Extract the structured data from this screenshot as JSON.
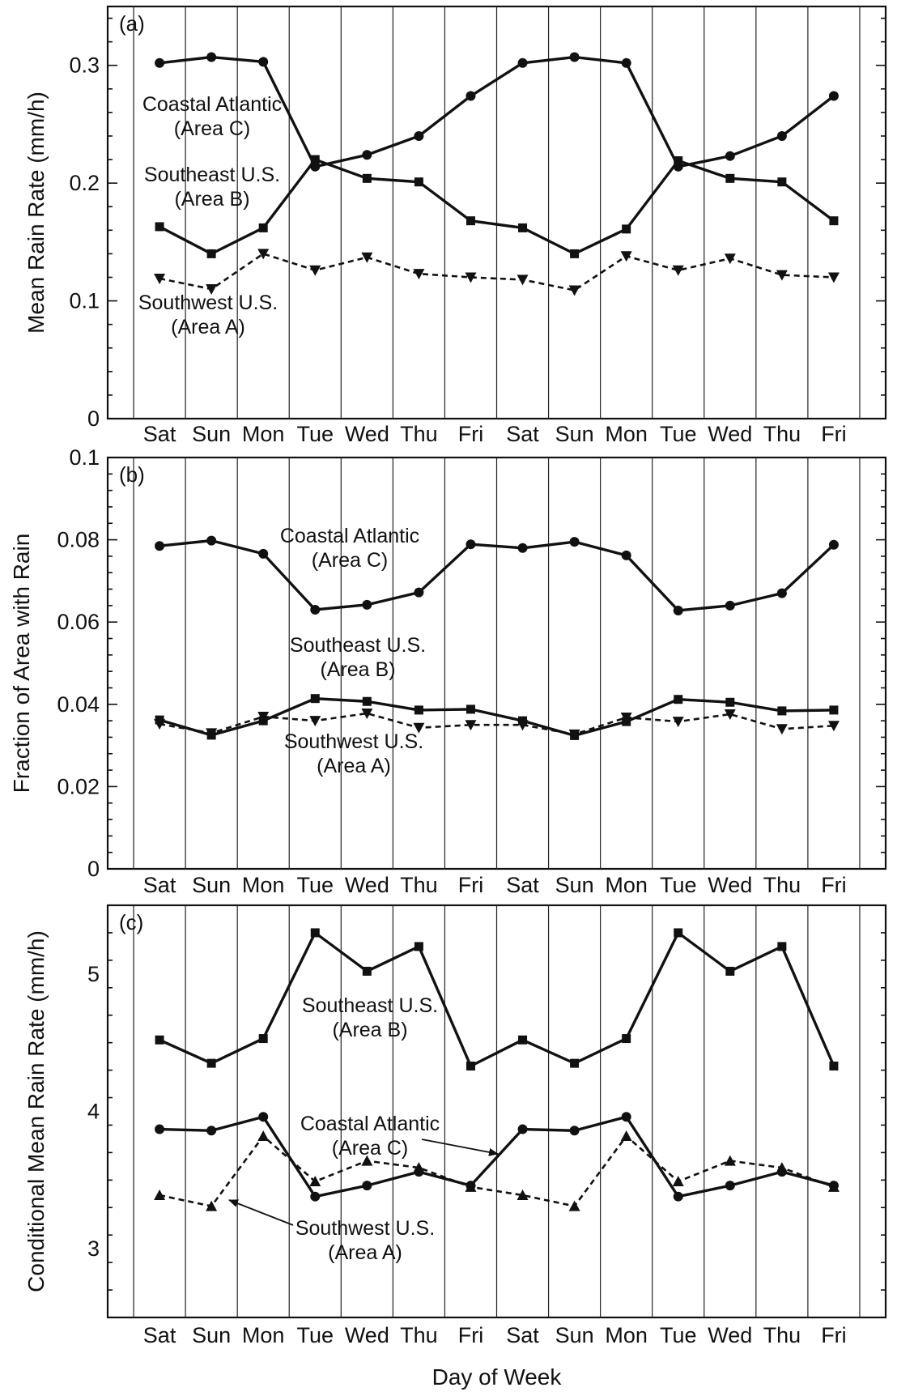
{
  "chart_data": [
    {
      "type": "line",
      "panel_label": "(a)",
      "ylabel": "Mean Rain Rate  (mm/h)",
      "xlabel": "",
      "ylim": [
        0,
        0.35
      ],
      "yticks": [
        0,
        0.1,
        0.2,
        0.3
      ],
      "ytick_labels": [
        "0",
        "0.1",
        "0.2",
        "0.3"
      ],
      "grid": "vertical",
      "categories": [
        "Sat",
        "Sun",
        "Mon",
        "Tue",
        "Wed",
        "Thu",
        "Fri",
        "Sat",
        "Sun",
        "Mon",
        "Tue",
        "Wed",
        "Thu",
        "Fri"
      ],
      "series": [
        {
          "name": "Coastal Atlantic",
          "name2": "(Area C)",
          "marker": "circle",
          "dash": "solid",
          "values": [
            0.302,
            0.307,
            0.303,
            0.214,
            0.224,
            0.24,
            0.274,
            0.302,
            0.307,
            0.302,
            0.214,
            0.223,
            0.24,
            0.274
          ]
        },
        {
          "name": "Southeast U.S.",
          "name2": "(Area B)",
          "marker": "square",
          "dash": "solid",
          "values": [
            0.163,
            0.14,
            0.162,
            0.22,
            0.204,
            0.201,
            0.168,
            0.162,
            0.14,
            0.161,
            0.219,
            0.204,
            0.201,
            0.168
          ]
        },
        {
          "name": "Southwest U.S.",
          "name2": "(Area A)",
          "marker": "triangle-down",
          "dash": "dashed",
          "values": [
            0.119,
            0.11,
            0.14,
            0.126,
            0.137,
            0.123,
            0.12,
            0.118,
            0.109,
            0.138,
            0.126,
            0.136,
            0.122,
            0.12
          ]
        }
      ]
    },
    {
      "type": "line",
      "panel_label": "(b)",
      "ylabel": "Fraction of Area with Rain",
      "xlabel": "",
      "ylim": [
        0,
        0.1
      ],
      "yticks": [
        0,
        0.02,
        0.04,
        0.06,
        0.08,
        0.1
      ],
      "ytick_labels": [
        "0",
        "0.02",
        "0.04",
        "0.06",
        "0.08",
        "0.1"
      ],
      "grid": "vertical",
      "categories": [
        "Sat",
        "Sun",
        "Mon",
        "Tue",
        "Wed",
        "Thu",
        "Fri",
        "Sat",
        "Sun",
        "Mon",
        "Tue",
        "Wed",
        "Thu",
        "Fri"
      ],
      "series": [
        {
          "name": "Coastal Atlantic",
          "name2": "(Area C)",
          "marker": "circle",
          "dash": "solid",
          "values": [
            0.0785,
            0.0798,
            0.0766,
            0.063,
            0.0642,
            0.0672,
            0.0789,
            0.078,
            0.0795,
            0.0762,
            0.0628,
            0.064,
            0.067,
            0.0788
          ]
        },
        {
          "name": "Southeast U.S.",
          "name2": "(Area B)",
          "marker": "square",
          "dash": "solid",
          "values": [
            0.0362,
            0.0325,
            0.036,
            0.0414,
            0.0407,
            0.0386,
            0.0388,
            0.036,
            0.0324,
            0.0358,
            0.0412,
            0.0405,
            0.0384,
            0.0386
          ]
        },
        {
          "name": "Southwest U.S.",
          "name2": "(Area A)",
          "marker": "triangle-down",
          "dash": "dashed",
          "values": [
            0.0352,
            0.033,
            0.037,
            0.036,
            0.0378,
            0.0343,
            0.035,
            0.035,
            0.0327,
            0.0368,
            0.0358,
            0.0376,
            0.034,
            0.0348
          ]
        }
      ]
    },
    {
      "type": "line",
      "panel_label": "(c)",
      "ylabel": "Conditional Mean Rain Rate  (mm/h)",
      "xlabel": "Day of Week",
      "ylim": [
        2.5,
        5.5
      ],
      "yticks": [
        3,
        4,
        5
      ],
      "ytick_labels": [
        "3",
        "4",
        "5"
      ],
      "grid": "vertical",
      "categories": [
        "Sat",
        "Sun",
        "Mon",
        "Tue",
        "Wed",
        "Thu",
        "Fri",
        "Sat",
        "Sun",
        "Mon",
        "Tue",
        "Wed",
        "Thu",
        "Fri"
      ],
      "series": [
        {
          "name": "Southeast U.S.",
          "name2": "(Area B)",
          "marker": "square",
          "dash": "solid",
          "values": [
            4.52,
            4.35,
            4.53,
            5.3,
            5.02,
            5.2,
            4.33,
            4.52,
            4.35,
            4.53,
            5.3,
            5.02,
            5.2,
            4.33
          ]
        },
        {
          "name": "Coastal Atlantic",
          "name2": "(Area C)",
          "marker": "circle",
          "dash": "solid",
          "values": [
            3.87,
            3.86,
            3.96,
            3.38,
            3.46,
            3.56,
            3.46,
            3.87,
            3.86,
            3.96,
            3.38,
            3.46,
            3.56,
            3.46
          ]
        },
        {
          "name": "Southwest U.S.",
          "name2": "(Area A)",
          "marker": "triangle-up",
          "dash": "dashed",
          "values": [
            3.39,
            3.31,
            3.82,
            3.49,
            3.64,
            3.59,
            3.45,
            3.39,
            3.31,
            3.82,
            3.49,
            3.64,
            3.59,
            3.45
          ]
        }
      ]
    }
  ]
}
